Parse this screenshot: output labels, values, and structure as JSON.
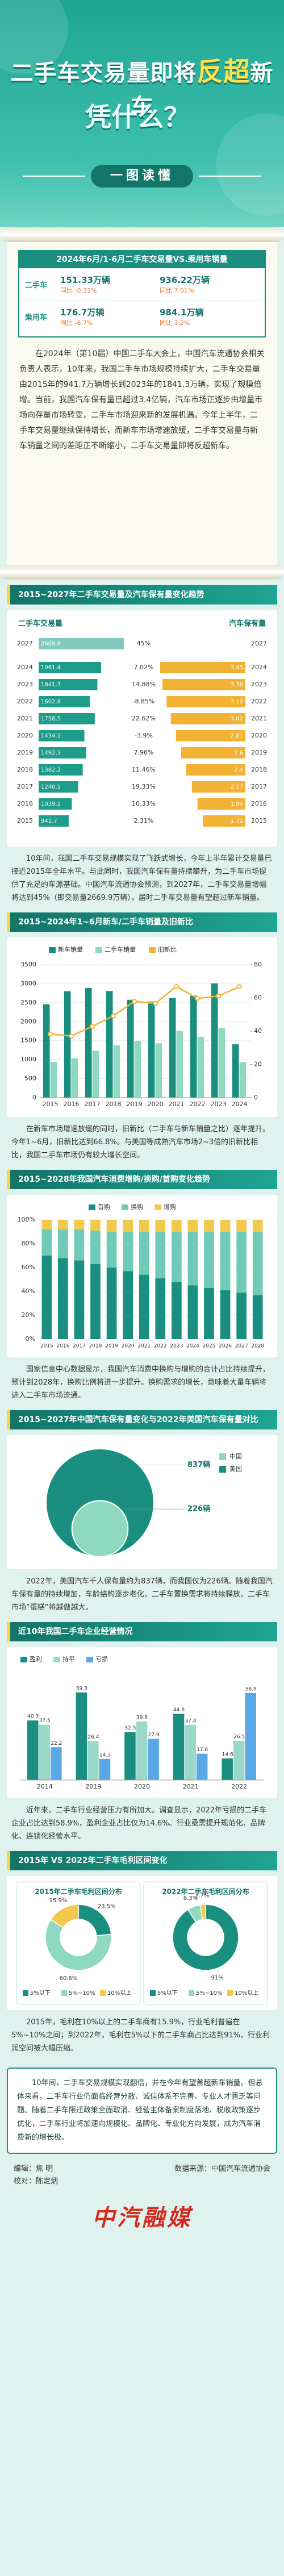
{
  "header": {
    "title_a": "二手车交易量即将",
    "title_hl": "反超",
    "title_b": "新车",
    "title_line2": "凭什么？",
    "banner": "一图读懂"
  },
  "summary": {
    "title": "2024年6月/1-6月二手车交易量VS.乘用车销量",
    "rows": [
      {
        "name": "二手车",
        "month": "151.33万辆",
        "month_change": "同比 -0.33%",
        "ytd": "936.22万辆",
        "ytd_change": "同比 7.01%"
      },
      {
        "name": "乘用车",
        "month": "176.7万辆",
        "month_change": "同比 -6.7%",
        "ytd": "984.1万辆",
        "ytd_change": "同比 3.2%"
      }
    ]
  },
  "intro": "在2024年（第10届）中国二手车大会上，中国汽车流通协会相关负责人表示，10年来，我国二手车市场规模持续扩大，二手车交易量由2015年的941.7万辆增长到2023年的1841.3万辆，实现了规模倍增。当前，我国汽车保有量已超过3.4亿辆，汽车市场正逐步由增量市场向存量市场转变，二手车市场迎来新的发展机遇。今年上半年，二手车交易量继续保持增长，而新车市场增速放缓，二手车交易量与新车销量之间的差距正不断缩小，二手车交易量即将反超新车。",
  "sections": [
    {
      "title": "2015~2027年二手车交易量及汽车保有量变化趋势",
      "text": "10年间，我国二手车交易规模实现了飞跃式增长，今年上半年累计交易量已接近2015年全年水平。与此同时，我国汽车保有量持续攀升，为二手车市场提供了充足的车源基础。中国汽车流通协会预测，到2027年，二手车交易量增幅将达到45%（即交易量2669.9万辆），届时二手车交易量有望超过新车销量。"
    },
    {
      "title": "2015~2024年1~6月新车/二手车销量及旧新比",
      "text": "在新车市场增速放缓的同时，旧新比（二手车与新车销量之比）逐年提升。今年1~6月，旧新比达到66.8%。与美国等成熟汽车市场2~3倍的旧新比相比，我国二手车市场仍有较大增长空间。"
    },
    {
      "title": "2015~2028年我国汽车消费增购/换购/首购变化趋势",
      "text": "国家信息中心数据显示，我国汽车消费中换购与增购的合计占比持续提升，预计到2028年，换购比例将进一步提升。换购需求的增长，意味着大量车辆将进入二手车市场流通。"
    },
    {
      "title": "2015~2027年中国汽车保有量变化与2022年美国汽车保有量对比",
      "text": "2022年，美国汽车千人保有量约为837辆，而我国仅为226辆。随着我国汽车保有量的持续增加，车龄结构逐步老化，二手车置换需求将持续释放，二手车市场“蛋糕”将越做越大。"
    },
    {
      "title": "近10年我国二手车企业经营情况",
      "text": "近年来，二手车行业经营压力有所加大。调查显示，2022年亏损的二手车企业占比达到58.9%，盈利企业占比仅为14.6%。行业亟需提升规范化、品牌化、连锁化经营水平。"
    },
    {
      "title": "2015年 VS 2022年二手车毛利区间变化",
      "text": "2015年，毛利在10%以上的二手车商有15.9%，行业毛利普遍在5%~10%之间；到2022年，毛利在5%以下的二手车商占比达到91%，行业利润空间被大幅压缩。"
    }
  ],
  "conclusion": "10年间，二手车交易规模实现翻倍，并在今年有望首超新车销量。但总体来看，二手车行业仍面临经营分散、诚信体系不完善、专业人才匮乏等问题。随着二手车限迁政策全面取消、经营主体备案制度落地、税收政策逐步优化，二手车行业将加速向规模化、品牌化、专业化方向发展，成为汽车消费新的增长极。",
  "footer": {
    "editor": "编辑：焦 明",
    "proof": "校对：陈定炳",
    "source": "数据来源：中国汽车流通协会",
    "logo": "中汽融媒"
  },
  "chart_data": [
    {
      "type": "butterfly",
      "categories": [
        "2027",
        "2024",
        "2023",
        "2022",
        "2021",
        "2020",
        "2019",
        "2018",
        "2017",
        "2016",
        "2015"
      ],
      "series": [
        {
          "name": "二手车交易量",
          "color": "#1f9d8b",
          "values": [
            2669.9,
            1961.4,
            1841.3,
            1602.8,
            1758.5,
            1434.1,
            1492.3,
            1382.2,
            1240.1,
            1039.1,
            941.7
          ]
        },
        {
          "name": "汽车保有量",
          "color": "#f2b233",
          "values": [
            null,
            3.45,
            3.36,
            3.19,
            3.02,
            2.81,
            2.6,
            2.4,
            2.17,
            1.94,
            1.72
          ]
        }
      ],
      "change_labels": [
        "45%",
        "7.02%",
        "14.88%",
        "-8.85%",
        "22.62%",
        "-3.9%",
        "7.96%",
        "11.46%",
        "19.33%",
        "10.33%",
        "2.31%"
      ]
    },
    {
      "type": "bar-line",
      "categories": [
        "2015",
        "2016",
        "2017",
        "2018",
        "2019",
        "2020",
        "2021",
        "2022",
        "2023",
        "2024"
      ],
      "series": [
        {
          "name": "新车销量",
          "color": "#1a8f80",
          "values": [
            2460,
            2803,
            2888,
            2808,
            2577,
            2531,
            2628,
            2686,
            3009,
            1405
          ]
        },
        {
          "name": "二手车销量",
          "color": "#8fd9c0",
          "values": [
            942,
            1039,
            1240,
            1382,
            1492,
            1434,
            1758,
            1603,
            1841,
            936
          ]
        },
        {
          "name": "旧新比",
          "color": "#f2b233",
          "axis": "y2",
          "values": [
            38.3,
            37.1,
            42.9,
            49.2,
            57.9,
            56.7,
            66.9,
            59.7,
            61.2,
            66.8
          ]
        }
      ],
      "ylim": [
        0,
        3500
      ],
      "yticks": [
        0,
        500,
        1000,
        1500,
        2000,
        2500,
        3000,
        3500
      ],
      "y2lim": [
        0,
        80
      ],
      "y2ticks": [
        0,
        20,
        40,
        60,
        80
      ],
      "grid": true
    },
    {
      "type": "stacked100",
      "categories": [
        "2015",
        "2016",
        "2017",
        "2018",
        "2019",
        "2020",
        "2021",
        "2022",
        "2023",
        "2024",
        "2025",
        "2026",
        "2027",
        "2028"
      ],
      "series": [
        {
          "name": "首购",
          "color": "#1a8f80",
          "values": [
            70,
            68,
            66,
            63,
            60,
            57,
            54,
            51,
            48,
            45,
            43,
            41,
            39,
            37
          ]
        },
        {
          "name": "换购",
          "color": "#6fcbb6",
          "values": [
            22,
            24,
            26,
            28,
            30,
            33,
            36,
            39,
            42,
            45,
            47,
            49,
            51,
            53
          ]
        },
        {
          "name": "增购",
          "color": "#f2c94c",
          "values": [
            8,
            8,
            8,
            9,
            10,
            10,
            10,
            10,
            10,
            10,
            10,
            10,
            10,
            10
          ]
        }
      ],
      "ylim": [
        0,
        100
      ],
      "yticks": [
        {
          "value": 0,
          "label": "0%"
        },
        {
          "value": 20,
          "label": "20%"
        },
        {
          "value": 40,
          "label": "40%"
        },
        {
          "value": 60,
          "label": "60%"
        },
        {
          "value": 80,
          "label": "80%"
        },
        {
          "value": 100,
          "label": "100%"
        }
      ],
      "grid": true
    },
    {
      "type": "circles",
      "categories": [
        "中国",
        "美国"
      ],
      "values": [
        226,
        837
      ],
      "value_labels": [
        "226辆",
        "837辆"
      ],
      "colors": [
        "#8fd9c0",
        "#1a8f80"
      ]
    },
    {
      "type": "grouped",
      "categories": [
        "2014",
        "2019",
        "2020",
        "2021",
        "2022"
      ],
      "series": [
        {
          "name": "盈利",
          "color": "#1a8f80",
          "values": [
            40.3,
            59.3,
            32.5,
            44.8,
            14.6
          ]
        },
        {
          "name": "持平",
          "color": "#9ad8c8",
          "values": [
            37.5,
            26.4,
            39.6,
            37.4,
            26.5
          ]
        },
        {
          "name": "亏损",
          "color": "#5aa9e6",
          "values": [
            22.2,
            14.3,
            27.9,
            17.8,
            58.9
          ]
        }
      ],
      "ylim": [
        0,
        70
      ]
    },
    {
      "type": "donut",
      "categories": [
        "5%以下",
        "5%~10%",
        "10%以上"
      ],
      "colors": [
        "#1a8f80",
        "#8fd9c0",
        "#f2c94c"
      ],
      "pies": [
        {
          "title": "2015年二手车毛利区间分布",
          "values": [
            23.5,
            60.6,
            15.9
          ],
          "value_labels": [
            "23.5%",
            "60.6%",
            "15.9%"
          ]
        },
        {
          "title": "2022年二手车毛利区间分布",
          "values": [
            91.0,
            6.3,
            2.7
          ],
          "value_labels": [
            "91%",
            "6.3%",
            "2.7%"
          ]
        }
      ]
    }
  ]
}
